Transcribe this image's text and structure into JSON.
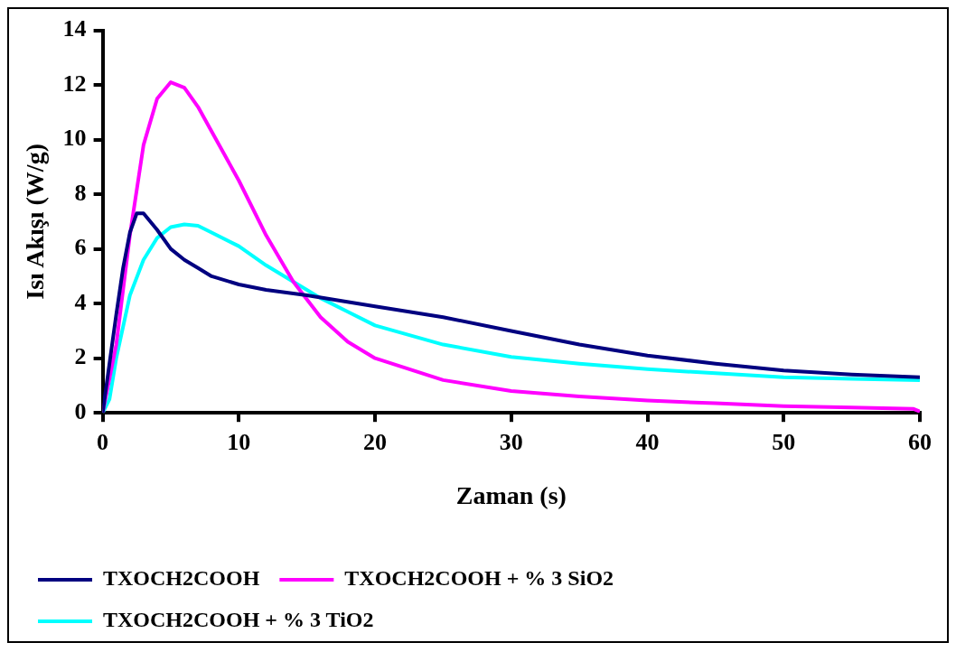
{
  "chart_data": {
    "type": "line",
    "xlabel": "Zaman (s)",
    "ylabel": "Isı Akışı (W/g)",
    "xlim": [
      0,
      60
    ],
    "xticks": [
      0,
      10,
      20,
      30,
      40,
      50,
      60
    ],
    "ylim": [
      0,
      14
    ],
    "yticks": [
      0,
      2,
      4,
      6,
      8,
      10,
      12,
      14
    ],
    "grid": false,
    "legend": "bottom",
    "marker": "none",
    "line_style": "solid",
    "series": [
      {
        "name": "TXOCH2COOH",
        "color": "#000080",
        "x": [
          0,
          0.5,
          1,
          1.5,
          2,
          2.5,
          3,
          4,
          5,
          6,
          7,
          8,
          10,
          12,
          15,
          20,
          25,
          30,
          35,
          40,
          45,
          50,
          55,
          60
        ],
        "values": [
          0,
          1.8,
          3.6,
          5.3,
          6.6,
          7.3,
          7.3,
          6.7,
          6.0,
          5.6,
          5.3,
          5.0,
          4.7,
          4.5,
          4.3,
          3.9,
          3.5,
          3.0,
          2.5,
          2.1,
          1.8,
          1.55,
          1.4,
          1.3
        ]
      },
      {
        "name": "TXOCH2COOH + % 3 SiO2",
        "color": "#ff00ff",
        "x": [
          0,
          1,
          2,
          3,
          4,
          5,
          6,
          7,
          8,
          10,
          12,
          14,
          16,
          18,
          20,
          25,
          30,
          35,
          40,
          45,
          50,
          55,
          59.5,
          60
        ],
        "values": [
          0,
          2.5,
          6.5,
          9.8,
          11.5,
          12.1,
          11.9,
          11.2,
          10.3,
          8.5,
          6.5,
          4.8,
          3.5,
          2.6,
          2.0,
          1.2,
          0.8,
          0.6,
          0.45,
          0.35,
          0.25,
          0.2,
          0.15,
          0.05
        ]
      },
      {
        "name": "TXOCH2COOH + % 3 TiO2",
        "color": "#00ffff",
        "x": [
          0,
          0.5,
          1,
          2,
          3,
          4,
          5,
          6,
          7,
          8,
          10,
          12,
          14,
          16,
          18,
          20,
          25,
          30,
          35,
          40,
          45,
          50,
          55,
          60
        ],
        "values": [
          0,
          0.5,
          2,
          4.3,
          5.6,
          6.4,
          6.8,
          6.9,
          6.85,
          6.6,
          6.1,
          5.4,
          4.8,
          4.2,
          3.7,
          3.2,
          2.5,
          2.05,
          1.8,
          1.6,
          1.45,
          1.3,
          1.25,
          1.2
        ]
      }
    ]
  }
}
